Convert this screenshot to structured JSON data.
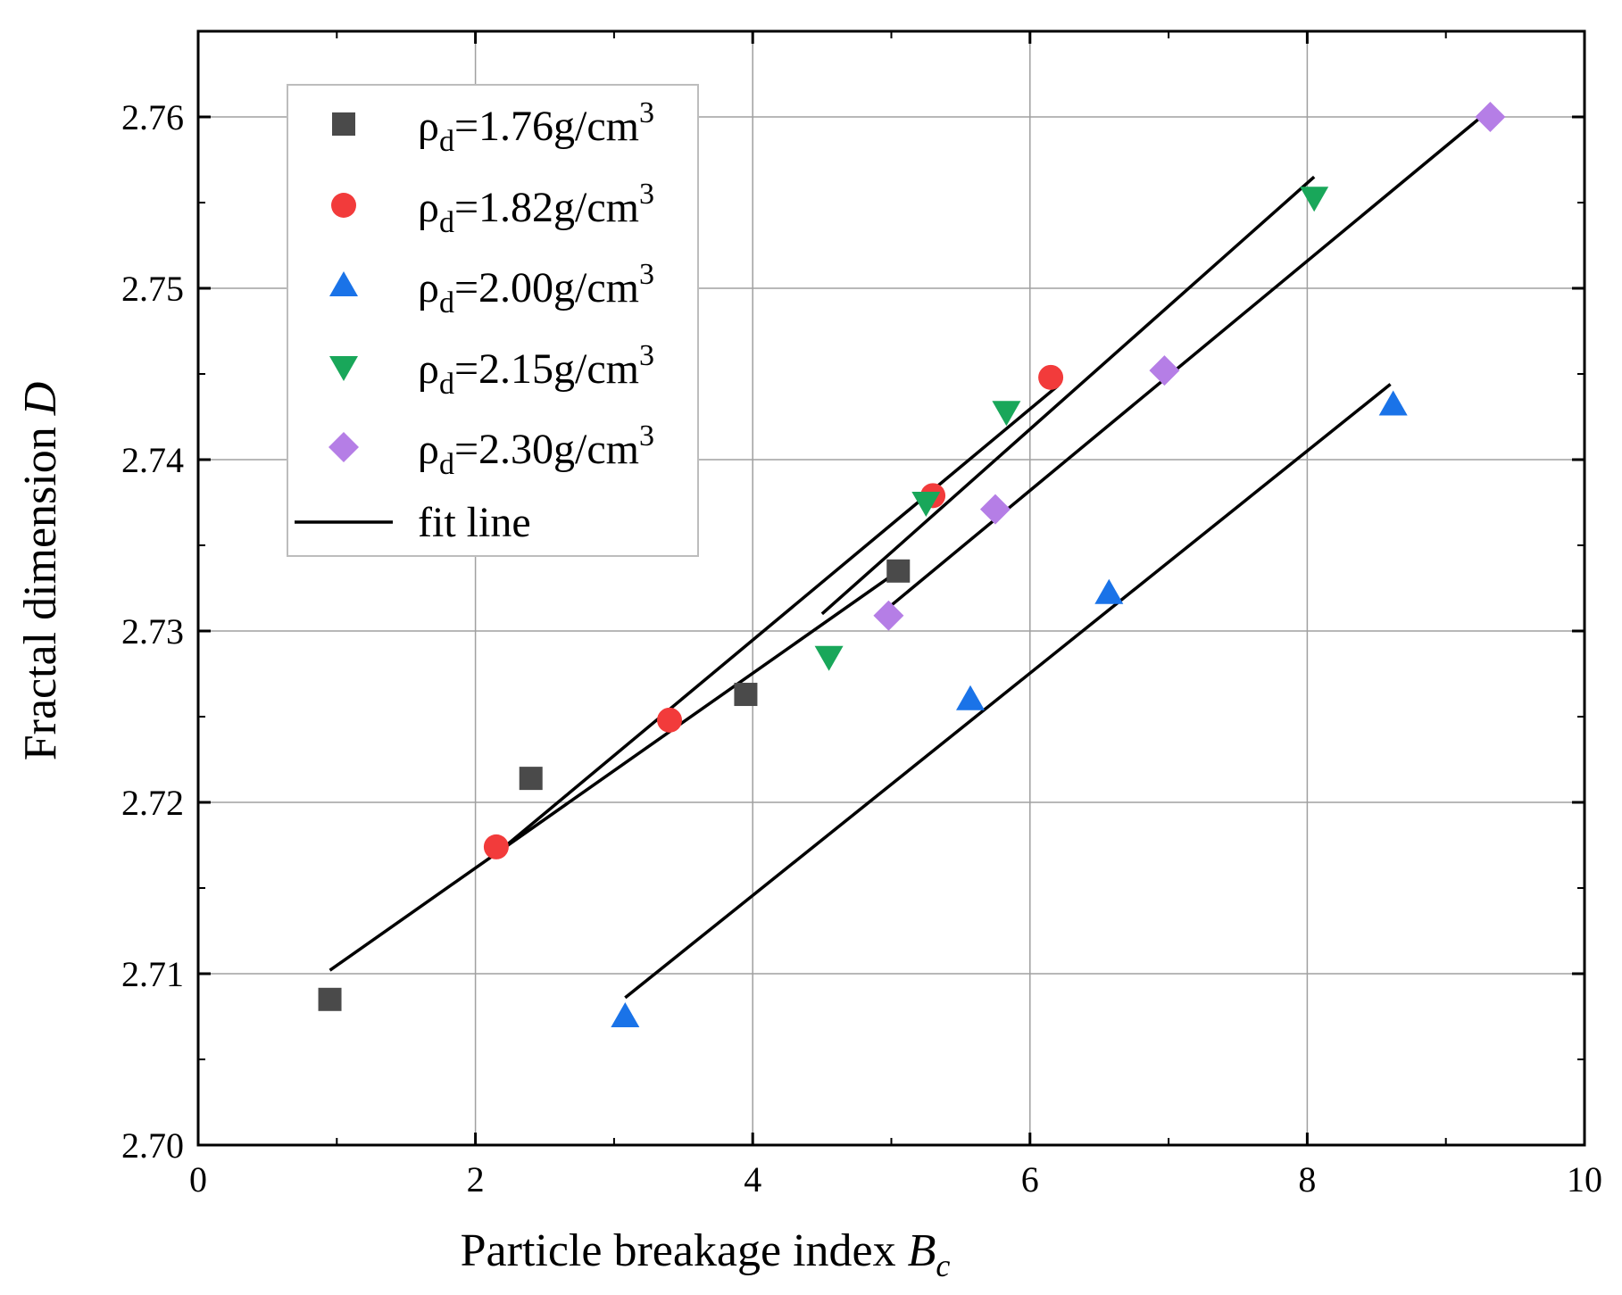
{
  "chart_data": {
    "type": "scatter",
    "xlabel": "Particle breakage index",
    "xlabel_symbol": "B",
    "xlabel_subscript": "c",
    "ylabel": "Fractal dimension",
    "ylabel_symbol": "D",
    "xlim": [
      0,
      10
    ],
    "ylim": [
      2.7,
      2.765
    ],
    "xticks": [
      0,
      2,
      4,
      6,
      8,
      10
    ],
    "xtick_labels": [
      "0",
      "2",
      "4",
      "6",
      "8",
      "10"
    ],
    "yticks": [
      2.7,
      2.71,
      2.72,
      2.73,
      2.74,
      2.75,
      2.76
    ],
    "ytick_labels": [
      "2.70",
      "2.71",
      "2.72",
      "2.73",
      "2.74",
      "2.75",
      "2.76"
    ],
    "grid": true,
    "legend_position": "top-left",
    "series": [
      {
        "name": "ρd=1.76g/cm3",
        "label_rho": "ρ",
        "label_sub": "d",
        "label_value": "=1.76g/cm",
        "label_sup": "3",
        "marker": "square",
        "color": "#4a4a4a",
        "x": [
          0.95,
          2.4,
          3.95,
          5.05
        ],
        "y": [
          2.7085,
          2.7214,
          2.7263,
          2.7335
        ],
        "fit": {
          "x": [
            0.95,
            5.05
          ],
          "y": [
            2.7102,
            2.7335
          ]
        }
      },
      {
        "name": "ρd=1.82g/cm3",
        "label_rho": "ρ",
        "label_sub": "d",
        "label_value": "=1.82g/cm",
        "label_sup": "3",
        "marker": "circle",
        "color": "#f23b3b",
        "x": [
          2.15,
          3.4,
          5.3,
          6.15
        ],
        "y": [
          2.7174,
          2.7248,
          2.7379,
          2.7448
        ],
        "fit": {
          "x": [
            2.15,
            6.2
          ],
          "y": [
            2.717,
            2.7443
          ]
        }
      },
      {
        "name": "ρd=2.00g/cm3",
        "label_rho": "ρ",
        "label_sub": "d",
        "label_value": "=2.00g/cm",
        "label_sup": "3",
        "marker": "triangle-up",
        "color": "#1a73e8",
        "x": [
          3.08,
          5.57,
          6.57,
          8.62
        ],
        "y": [
          2.7075,
          2.726,
          2.7322,
          2.7432
        ],
        "fit": {
          "x": [
            3.08,
            8.6
          ],
          "y": [
            2.7086,
            2.7444
          ]
        }
      },
      {
        "name": "ρd=2.15g/cm3",
        "label_rho": "ρ",
        "label_sub": "d",
        "label_value": "=2.15g/cm",
        "label_sup": "3",
        "marker": "triangle-down",
        "color": "#19a75a",
        "x": [
          4.55,
          5.25,
          5.83,
          8.05
        ],
        "y": [
          2.7285,
          2.7375,
          2.7428,
          2.7553
        ],
        "fit": {
          "x": [
            4.5,
            8.05
          ],
          "y": [
            2.731,
            2.7565
          ]
        }
      },
      {
        "name": "ρd=2.30g/cm3",
        "label_rho": "ρ",
        "label_sub": "d",
        "label_value": "=2.30g/cm",
        "label_sup": "3",
        "marker": "diamond",
        "color": "#b57ee6",
        "x": [
          4.98,
          5.75,
          6.97,
          9.32
        ],
        "y": [
          2.7309,
          2.7371,
          2.7452,
          2.76
        ],
        "fit": {
          "x": [
            5.0,
            9.3
          ],
          "y": [
            2.7315,
            2.7603
          ]
        }
      }
    ],
    "fit_legend_label": "fit line"
  }
}
